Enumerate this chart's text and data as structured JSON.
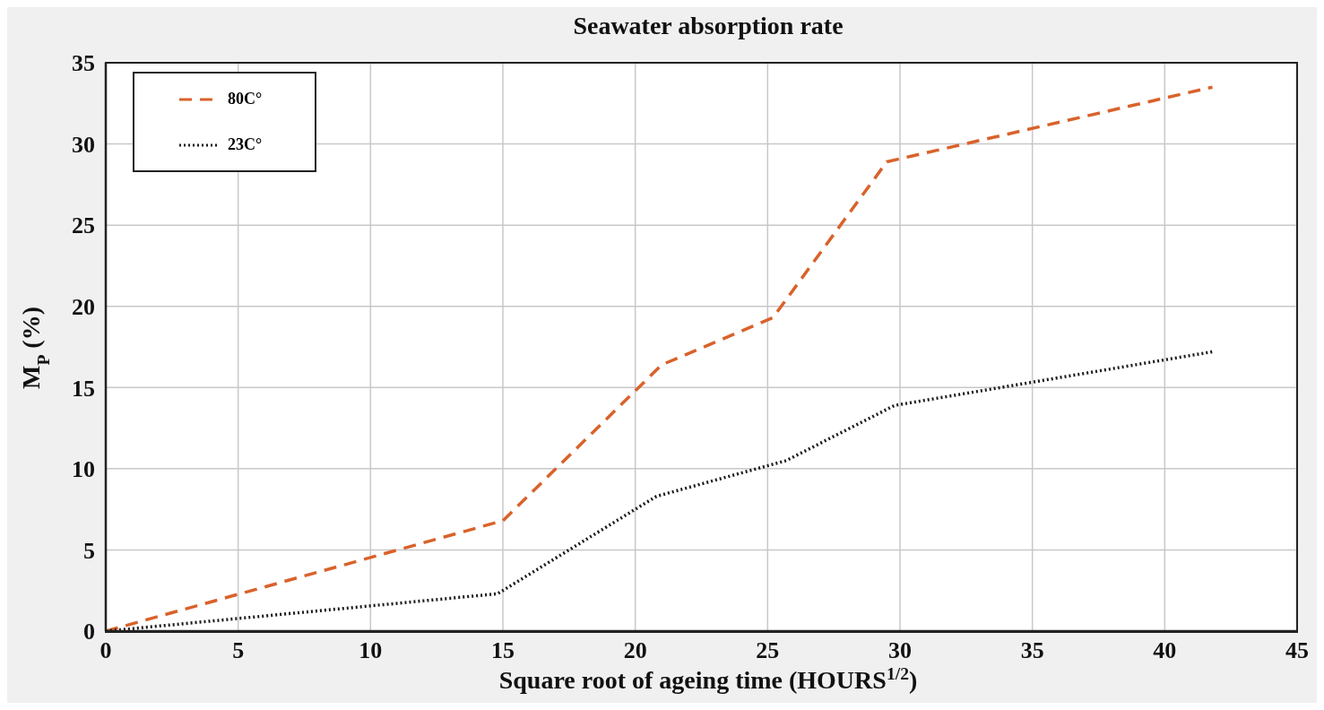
{
  "chart_data": {
    "type": "line",
    "title": "Seawater absorption rate",
    "xlabel": "Square root of ageing time (HOURS$^{1/2}$)",
    "ylabel": "M$_{P}$ (%)",
    "xlim": [
      0,
      45
    ],
    "xticks": [
      0,
      5,
      10,
      15,
      20,
      25,
      30,
      35,
      40,
      45
    ],
    "ylim": [
      0,
      35
    ],
    "yticks": [
      0,
      5,
      10,
      15,
      20,
      25,
      30,
      35
    ],
    "grid": true,
    "legend": "top left",
    "marker": "none",
    "series": [
      {
        "name": "80C°",
        "color": "#d9622b",
        "line_style": "dashed",
        "x": [
          0,
          15,
          21,
          25.2,
          29.5,
          41.8
        ],
        "values": [
          0,
          6.8,
          16.4,
          19.3,
          28.9,
          33.5
        ]
      },
      {
        "name": "23C°",
        "color": "#1a1a1a",
        "line_style": "dotted",
        "x": [
          0,
          14.8,
          20.8,
          25.7,
          29.8,
          41.8
        ],
        "values": [
          0,
          2.3,
          8.3,
          10.5,
          13.9,
          17.2
        ]
      }
    ]
  }
}
